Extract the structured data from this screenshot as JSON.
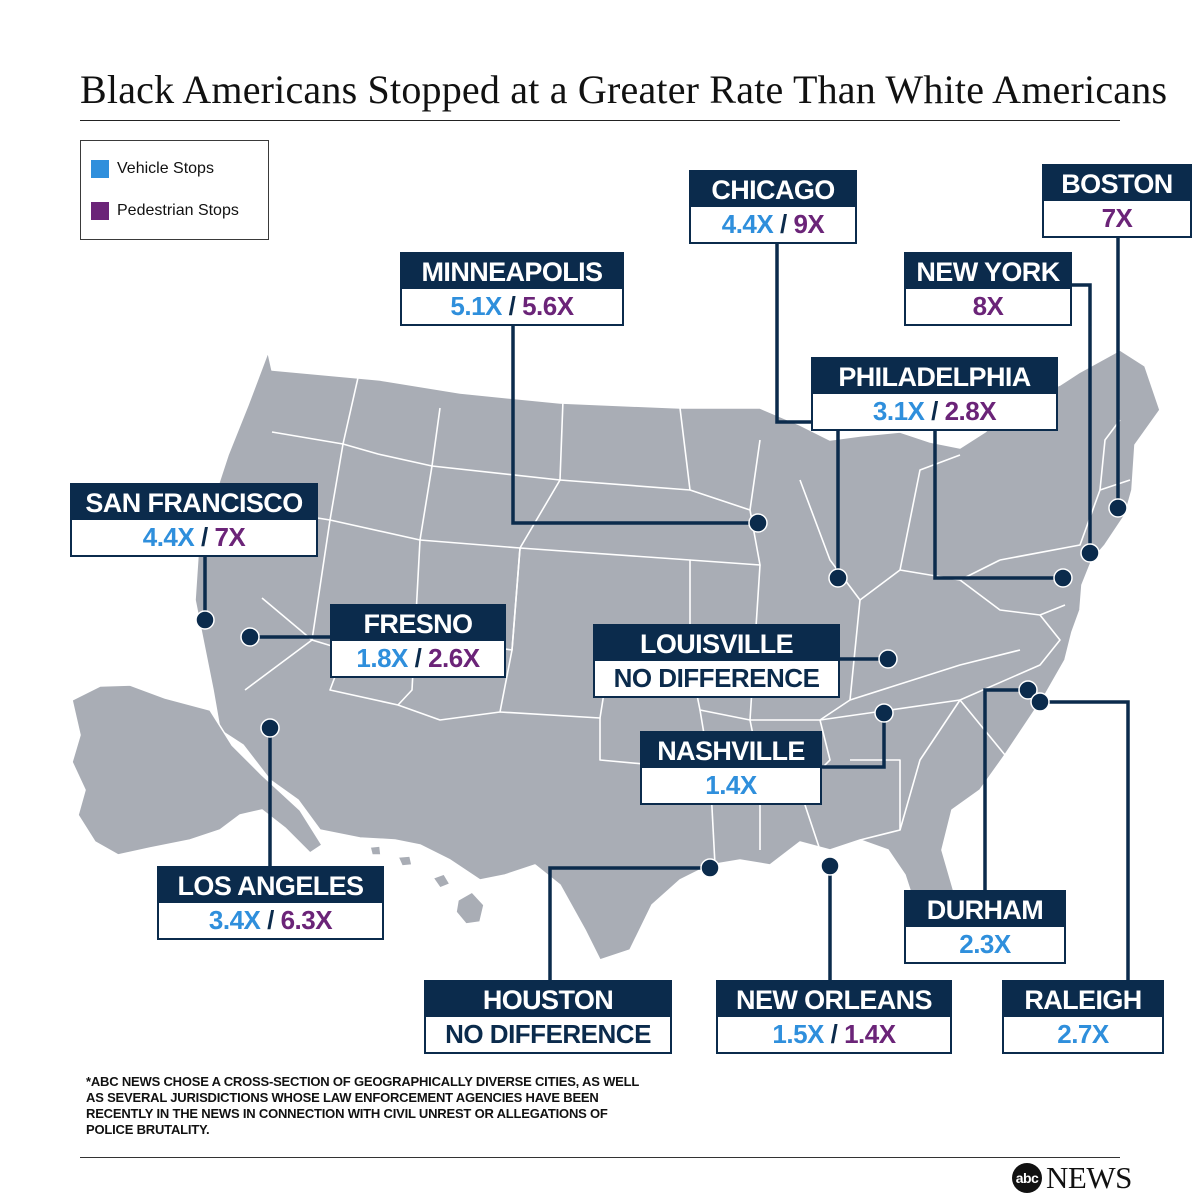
{
  "title": "Black Americans Stopped at a Greater Rate Than White Americans",
  "legend": {
    "vehicle": {
      "label": "Vehicle Stops",
      "color": "#2f8fdc"
    },
    "pedestrian": {
      "label": "Pedestrian Stops",
      "color": "#6b2478"
    }
  },
  "cities": {
    "chicago": {
      "name": "CHICAGO",
      "vehicle": "4.4X",
      "pedestrian": "9X"
    },
    "boston": {
      "name": "BOSTON",
      "pedestrian": "7X"
    },
    "minneapolis": {
      "name": "MINNEAPOLIS",
      "vehicle": "5.1X",
      "pedestrian": "5.6X"
    },
    "new_york": {
      "name": "NEW YORK",
      "pedestrian": "8X"
    },
    "philadelphia": {
      "name": "PHILADELPHIA",
      "vehicle": "3.1X",
      "pedestrian": "2.8X"
    },
    "san_francisco": {
      "name": "SAN FRANCISCO",
      "vehicle": "4.4X",
      "pedestrian": "7X"
    },
    "fresno": {
      "name": "FRESNO",
      "vehicle": "1.8X",
      "pedestrian": "2.6X"
    },
    "louisville": {
      "name": "LOUISVILLE",
      "note": "NO DIFFERENCE"
    },
    "nashville": {
      "name": "NASHVILLE",
      "vehicle": "1.4X"
    },
    "los_angeles": {
      "name": "LOS ANGELES",
      "vehicle": "3.4X",
      "pedestrian": "6.3X"
    },
    "durham": {
      "name": "DURHAM",
      "vehicle": "2.3X"
    },
    "houston": {
      "name": "HOUSTON",
      "note": "NO DIFFERENCE"
    },
    "new_orleans": {
      "name": "NEW ORLEANS",
      "vehicle": "1.5X",
      "pedestrian": "1.4X"
    },
    "raleigh": {
      "name": "RALEIGH",
      "vehicle": "2.7X"
    }
  },
  "separator": "/",
  "footnote": "*ABC NEWS CHOSE A CROSS-SECTION OF GEOGRAPHICALLY DIVERSE CITIES, AS WELL AS SEVERAL JURISDICTIONS WHOSE LAW ENFORCEMENT AGENCIES HAVE BEEN RECENTLY IN THE NEWS IN CONNECTION WITH CIVIL UNREST OR ALLEGATIONS OF POLICE BRUTALITY.",
  "logo": {
    "mark": "abc",
    "word": "NEWS"
  },
  "colors": {
    "navy": "#0b2b4c",
    "land": "#a9adb5",
    "border": "#ffffff"
  }
}
